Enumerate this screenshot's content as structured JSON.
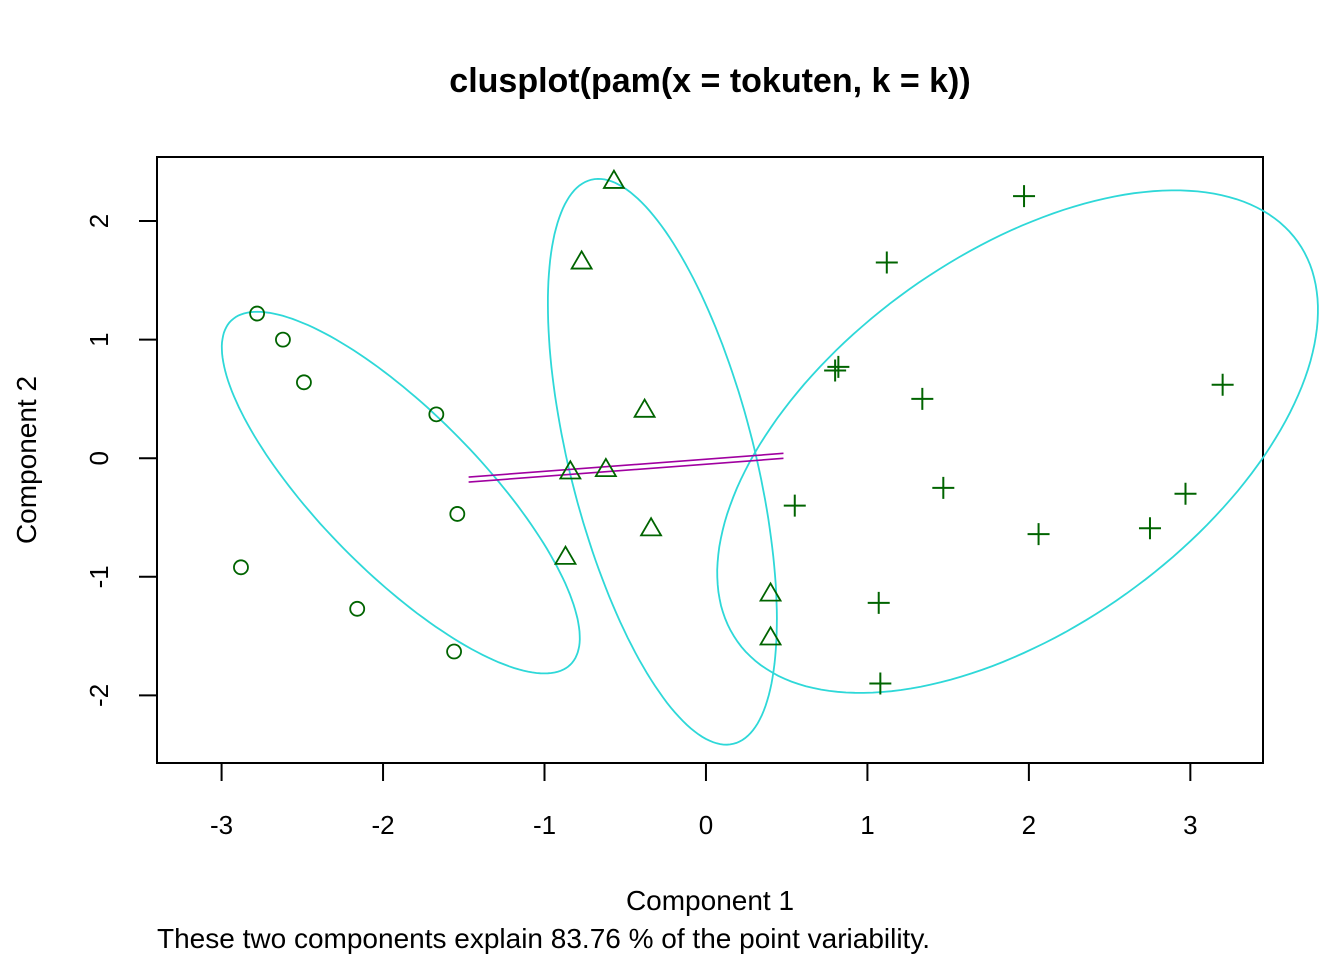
{
  "chart_data": {
    "type": "scatter",
    "title": "clusplot(pam(x = tokuten, k = k))",
    "xlabel": "Component 1",
    "ylabel": "Component 2",
    "subtitle": "These two components explain 83.76 % of the point variability.",
    "xlim": [
      -3.4,
      3.45
    ],
    "ylim": [
      -2.57,
      2.54
    ],
    "xticks": [
      "-3",
      "-2",
      "-1",
      "0",
      "1",
      "2",
      "3"
    ],
    "yticks": [
      "-2",
      "-1",
      "0",
      "1",
      "2"
    ],
    "colors": {
      "points": "#006400",
      "ellipse": "#2ed8d8",
      "link": "#a000a0",
      "frame": "#000000"
    },
    "clusters": [
      {
        "symbol": "circle",
        "points": [
          [
            -2.78,
            1.22
          ],
          [
            -2.62,
            1.0
          ],
          [
            -2.49,
            0.64
          ],
          [
            -1.67,
            0.37
          ],
          [
            -1.54,
            -0.47
          ],
          [
            -2.88,
            -0.92
          ],
          [
            -2.16,
            -1.27
          ],
          [
            -1.56,
            -1.63
          ]
        ],
        "ellipse": {
          "cx": -1.89,
          "cy": -0.29,
          "a": 1.8,
          "b": 0.56,
          "angle": -56
        }
      },
      {
        "symbol": "triangle",
        "points": [
          [
            -0.57,
            2.34
          ],
          [
            -0.77,
            1.66
          ],
          [
            -0.38,
            0.41
          ],
          [
            -0.84,
            -0.11
          ],
          [
            -0.62,
            -0.09
          ],
          [
            -0.34,
            -0.59
          ],
          [
            -0.87,
            -0.83
          ],
          [
            0.4,
            -1.14
          ],
          [
            0.4,
            -1.51
          ]
        ],
        "ellipse": {
          "cx": -0.27,
          "cy": -0.03,
          "a": 2.42,
          "b": 0.58,
          "angle": -80
        }
      },
      {
        "symbol": "plus",
        "points": [
          [
            1.97,
            2.21
          ],
          [
            1.12,
            1.65
          ],
          [
            0.82,
            0.77
          ],
          [
            0.8,
            0.74
          ],
          [
            1.34,
            0.5
          ],
          [
            3.2,
            0.62
          ],
          [
            1.47,
            -0.25
          ],
          [
            2.97,
            -0.3
          ],
          [
            0.55,
            -0.4
          ],
          [
            2.06,
            -0.64
          ],
          [
            2.75,
            -0.59
          ],
          [
            1.07,
            -1.22
          ],
          [
            1.08,
            -1.9
          ]
        ],
        "ellipse": {
          "cx": 1.93,
          "cy": 0.14,
          "a": 2.47,
          "b": 1.36,
          "angle": 52
        }
      }
    ],
    "links": [
      {
        "from": [
          -1.47,
          -0.18
        ],
        "to": [
          0.48,
          0.02
        ]
      }
    ]
  }
}
